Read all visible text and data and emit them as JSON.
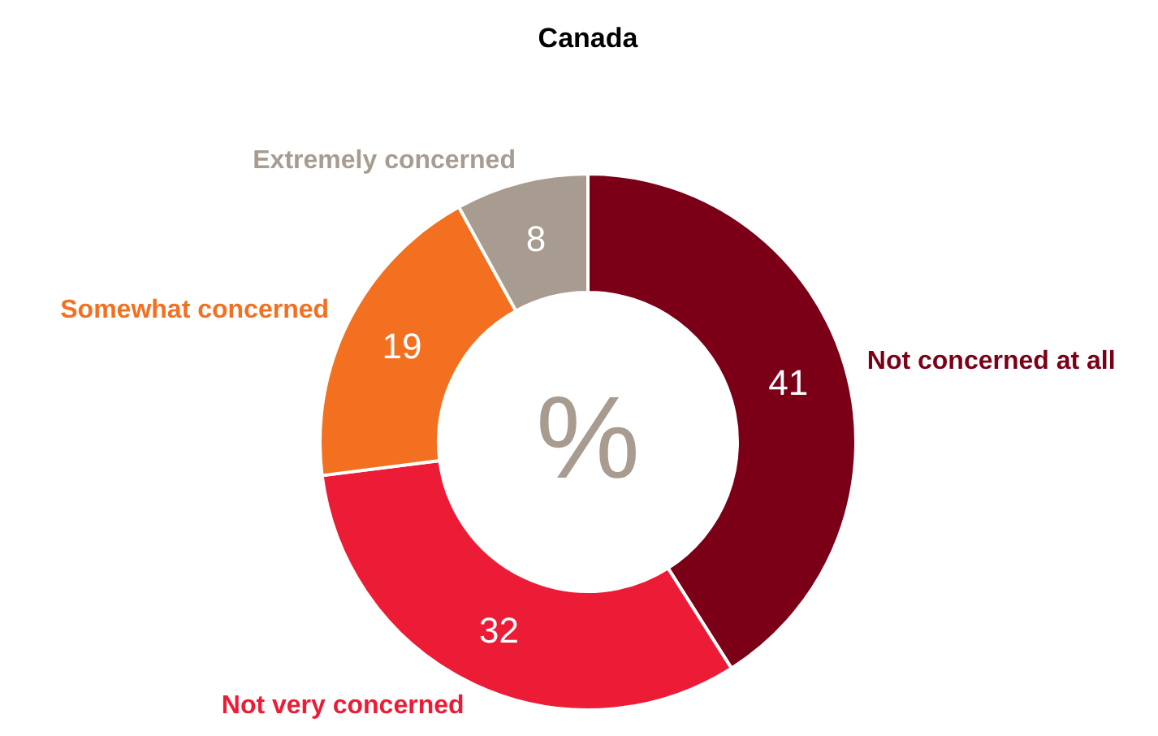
{
  "chart_data": {
    "type": "donut",
    "title": "Canada",
    "categories": [
      "Not concerned at all",
      "Not very concerned",
      "Somewhat concerned",
      "Extremely concerned"
    ],
    "values": [
      41,
      32,
      19,
      8
    ],
    "colors": [
      "#7b0017",
      "#ec1c36",
      "#f37021",
      "#a89c91"
    ],
    "data_labels": true,
    "annotations": [
      "%"
    ]
  }
}
